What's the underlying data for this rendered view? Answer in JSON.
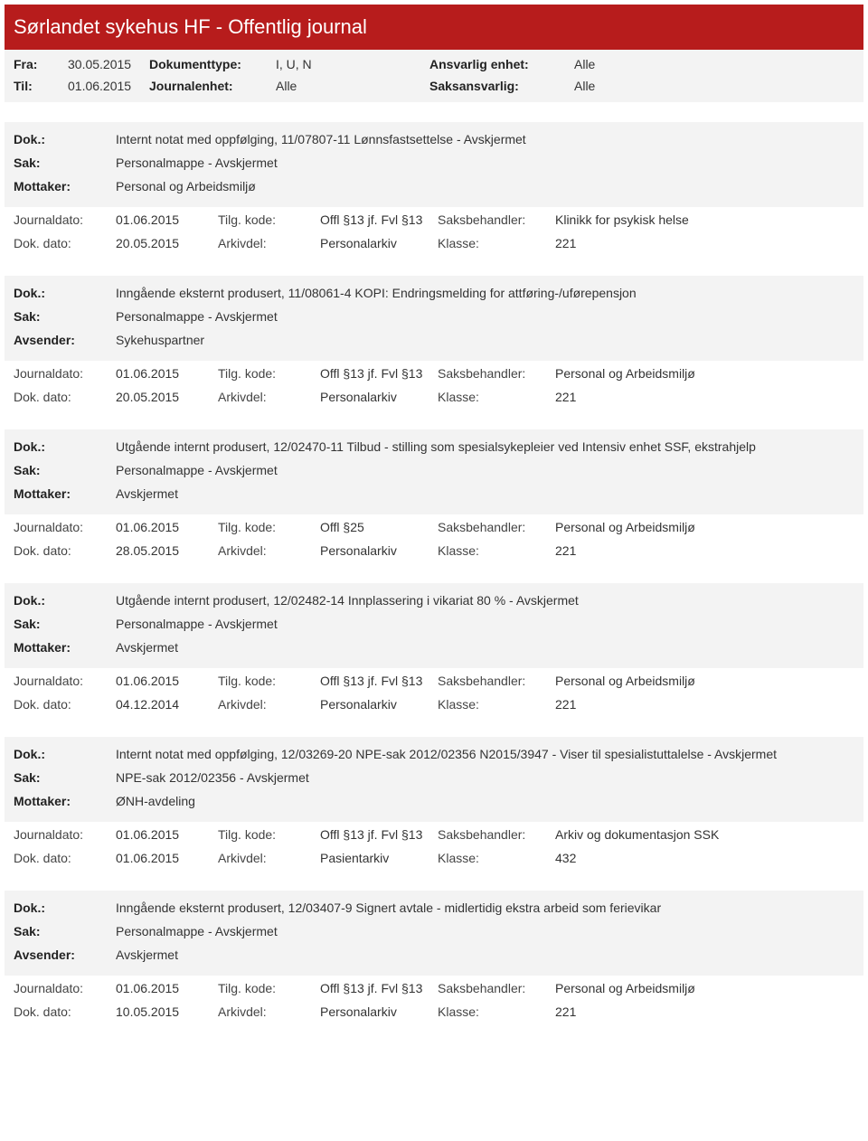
{
  "header": {
    "title": "Sørlandet sykehus HF - Offentlig journal"
  },
  "filter": {
    "fra_label": "Fra:",
    "fra_value": "30.05.2015",
    "til_label": "Til:",
    "til_value": "01.06.2015",
    "doktype_label": "Dokumenttype:",
    "doktype_value": "I, U, N",
    "journalenhet_label": "Journalenhet:",
    "journalenhet_value": "Alle",
    "ansvarlig_label": "Ansvarlig enhet:",
    "ansvarlig_value": "Alle",
    "saksansvarlig_label": "Saksansvarlig:",
    "saksansvarlig_value": "Alle"
  },
  "labels": {
    "dok": "Dok.:",
    "sak": "Sak:",
    "mottaker": "Mottaker:",
    "avsender": "Avsender:",
    "journaldato": "Journaldato:",
    "dokdato": "Dok. dato:",
    "tilgkode": "Tilg. kode:",
    "arkivdel": "Arkivdel:",
    "saksbehandler": "Saksbehandler:",
    "klasse": "Klasse:"
  },
  "entries": [
    {
      "dok": "Internt notat med oppfølging, 11/07807-11 Lønnsfastsettelse - Avskjermet",
      "sak": "Personalmappe - Avskjermet",
      "party_label": "Mottaker:",
      "party_value": "Personal og Arbeidsmiljø",
      "journaldato": "01.06.2015",
      "tilgkode": "Offl §13 jf. Fvl §13",
      "saksbehandler": "Klinikk for psykisk helse",
      "dokdato": "20.05.2015",
      "arkivdel": "Personalarkiv",
      "klasse": "221"
    },
    {
      "dok": "Inngående eksternt produsert, 11/08061-4 KOPI: Endringsmelding for attføring-/uførepensjon",
      "sak": "Personalmappe - Avskjermet",
      "party_label": "Avsender:",
      "party_value": "Sykehuspartner",
      "journaldato": "01.06.2015",
      "tilgkode": "Offl §13 jf. Fvl §13",
      "saksbehandler": "Personal og Arbeidsmiljø",
      "dokdato": "20.05.2015",
      "arkivdel": "Personalarkiv",
      "klasse": "221"
    },
    {
      "dok": "Utgående internt produsert, 12/02470-11 Tilbud - stilling som spesialsykepleier ved Intensiv enhet SSF, ekstrahjelp",
      "sak": "Personalmappe - Avskjermet",
      "party_label": "Mottaker:",
      "party_value": "Avskjermet",
      "journaldato": "01.06.2015",
      "tilgkode": "Offl §25",
      "saksbehandler": "Personal og Arbeidsmiljø",
      "dokdato": "28.05.2015",
      "arkivdel": "Personalarkiv",
      "klasse": "221"
    },
    {
      "dok": "Utgående internt produsert, 12/02482-14 Innplassering i vikariat 80 % - Avskjermet",
      "sak": "Personalmappe - Avskjermet",
      "party_label": "Mottaker:",
      "party_value": "Avskjermet",
      "journaldato": "01.06.2015",
      "tilgkode": "Offl §13 jf. Fvl §13",
      "saksbehandler": "Personal og Arbeidsmiljø",
      "dokdato": "04.12.2014",
      "arkivdel": "Personalarkiv",
      "klasse": "221"
    },
    {
      "dok": "Internt notat med oppfølging, 12/03269-20 NPE-sak 2012/02356 N2015/3947 - Viser til spesialistuttalelse - Avskjermet",
      "sak": "NPE-sak 2012/02356 - Avskjermet",
      "party_label": "Mottaker:",
      "party_value": "ØNH-avdeling",
      "journaldato": "01.06.2015",
      "tilgkode": "Offl §13 jf. Fvl §13",
      "saksbehandler": "Arkiv og dokumentasjon SSK",
      "dokdato": "01.06.2015",
      "arkivdel": "Pasientarkiv",
      "klasse": "432"
    },
    {
      "dok": "Inngående eksternt produsert, 12/03407-9 Signert avtale - midlertidig ekstra arbeid som ferievikar",
      "sak": "Personalmappe - Avskjermet",
      "party_label": "Avsender:",
      "party_value": "Avskjermet",
      "journaldato": "01.06.2015",
      "tilgkode": "Offl §13 jf. Fvl §13",
      "saksbehandler": "Personal og Arbeidsmiljø",
      "dokdato": "10.05.2015",
      "arkivdel": "Personalarkiv",
      "klasse": "221"
    }
  ]
}
